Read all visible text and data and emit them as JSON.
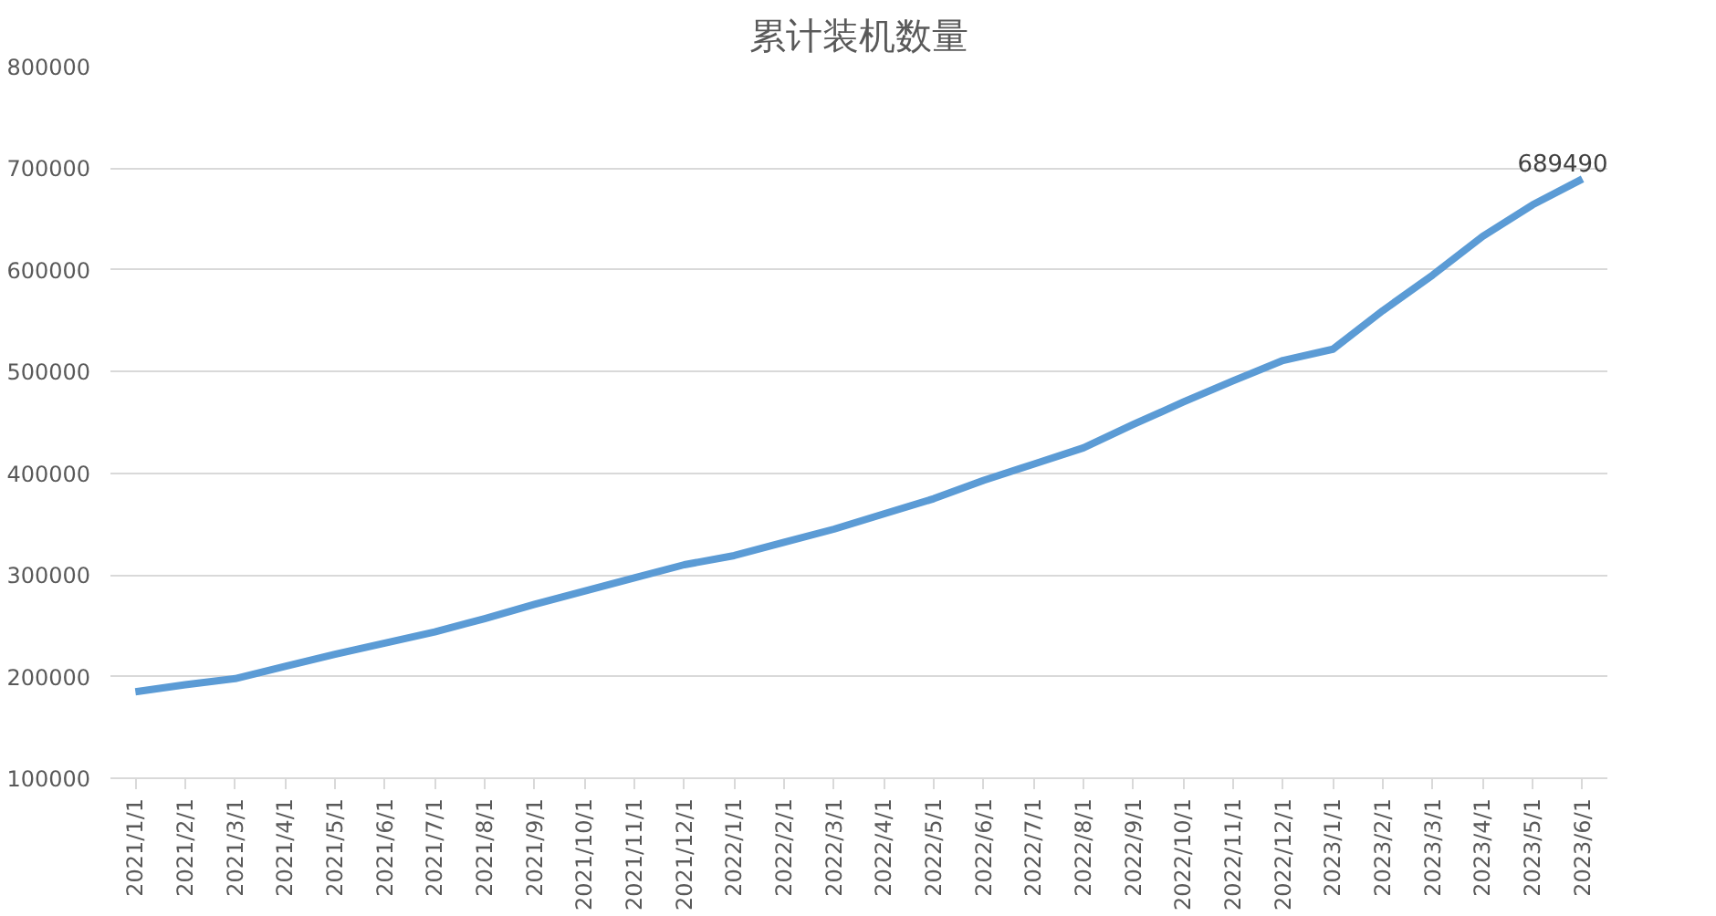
{
  "chart_data": {
    "type": "line",
    "title": "累计装机数量",
    "categories": [
      "2021/1/1",
      "2021/2/1",
      "2021/3/1",
      "2021/4/1",
      "2021/5/1",
      "2021/6/1",
      "2021/7/1",
      "2021/8/1",
      "2021/9/1",
      "2021/10/1",
      "2021/11/1",
      "2021/12/1",
      "2022/1/1",
      "2022/2/1",
      "2022/3/1",
      "2022/4/1",
      "2022/5/1",
      "2022/6/1",
      "2022/7/1",
      "2022/8/1",
      "2022/9/1",
      "2022/10/1",
      "2022/11/1",
      "2022/12/1",
      "2023/1/1",
      "2023/2/1",
      "2023/3/1",
      "2023/4/1",
      "2023/5/1",
      "2023/6/1"
    ],
    "series": [
      {
        "color": "#5b9bd5",
        "values": [
          185000,
          192000,
          198000,
          210000,
          222000,
          233000,
          244000,
          257000,
          271000,
          284000,
          297000,
          310000,
          319000,
          332000,
          345000,
          360000,
          375000,
          393000,
          409000,
          425000,
          448000,
          470000,
          491000,
          511000,
          522000,
          560000,
          595000,
          633000,
          664000,
          689490
        ],
        "value_labels": [
          null,
          null,
          null,
          null,
          null,
          null,
          null,
          null,
          null,
          null,
          null,
          null,
          null,
          null,
          null,
          null,
          null,
          null,
          null,
          null,
          null,
          null,
          null,
          null,
          null,
          null,
          null,
          null,
          null,
          "689490"
        ]
      }
    ],
    "ylim": [
      100000,
      800000
    ],
    "yticks": [
      100000,
      200000,
      300000,
      400000,
      500000,
      600000,
      700000,
      800000
    ],
    "grid": "y",
    "marker": "none",
    "line_style": "solid"
  }
}
